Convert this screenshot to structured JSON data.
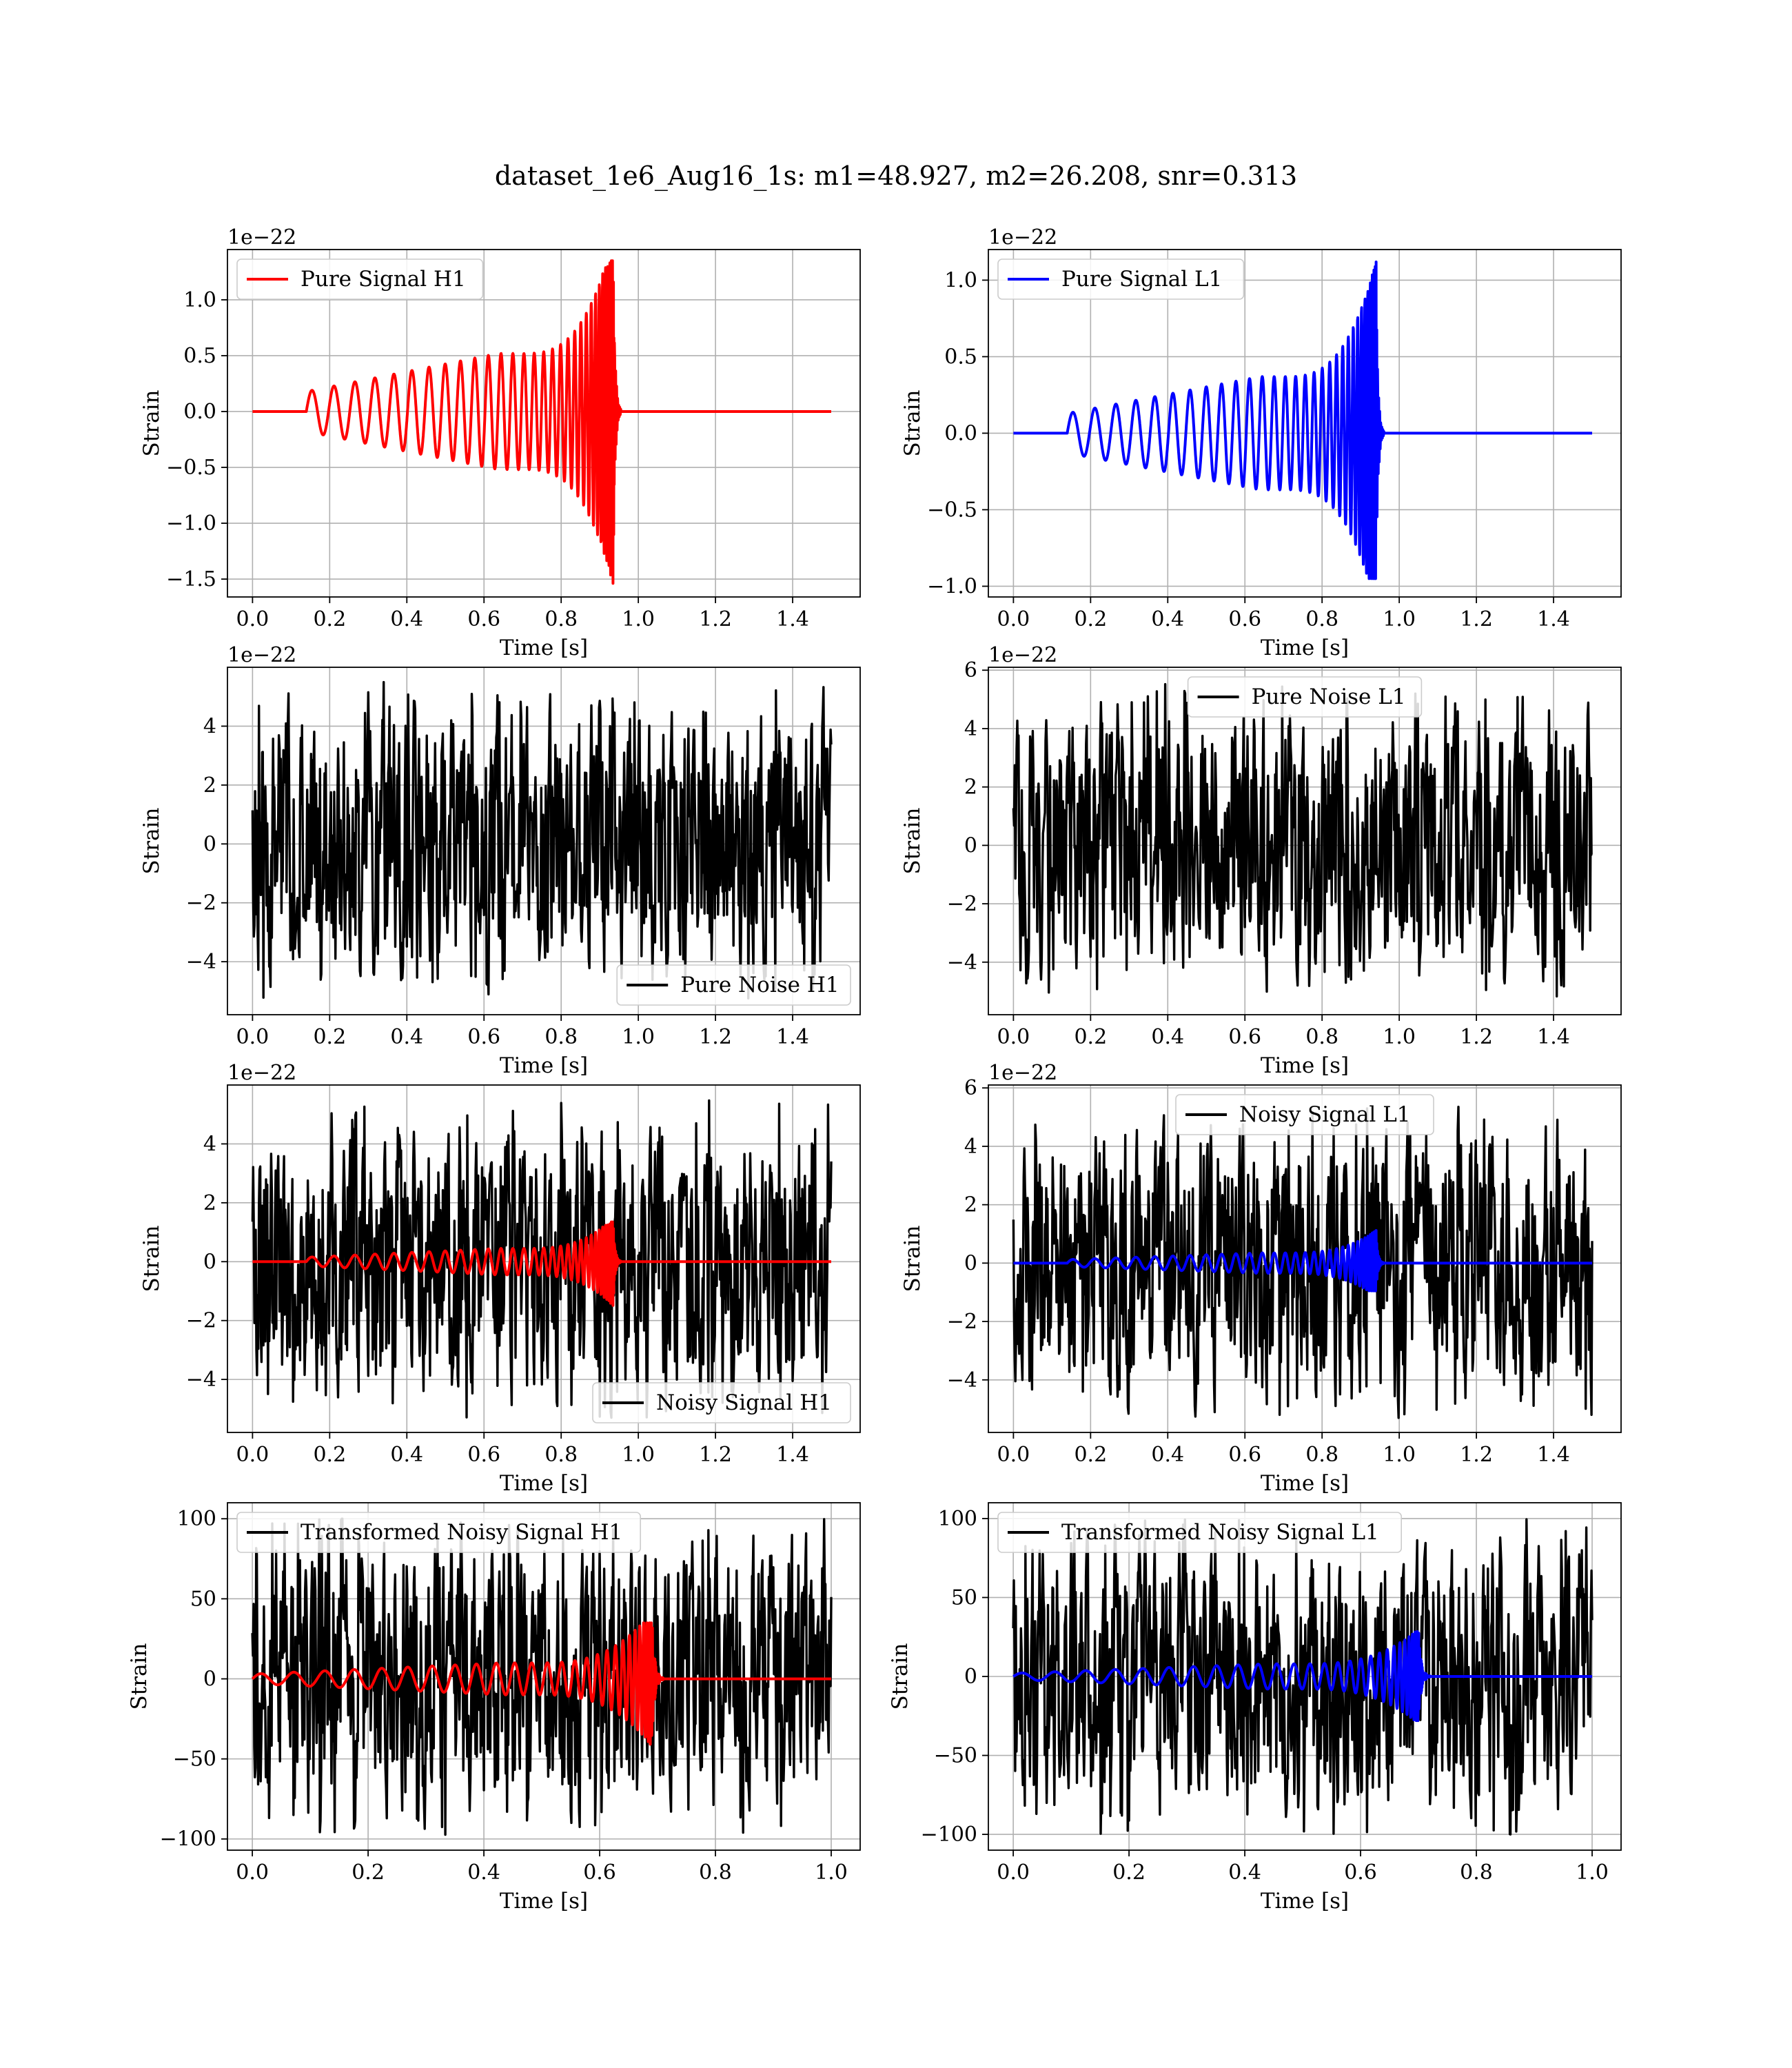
{
  "figure": {
    "title": "dataset_1e6_Aug16_1s: m1=48.927, m2=26.208, snr=0.313"
  },
  "colors": {
    "h1_signal": "#ff0000",
    "l1_signal": "#0000ff",
    "noise": "#000000",
    "grid": "#b0b0b0"
  },
  "chart_data": [
    {
      "type": "line",
      "panel": "pure-signal-h1",
      "xlabel": "Time [s]",
      "ylabel": "Strain",
      "offset_text": "1e−22",
      "xlim": [
        -0.065,
        1.575
      ],
      "ylim": [
        -1.66,
        1.45
      ],
      "xticks": [
        0.0,
        0.2,
        0.4,
        0.6,
        0.8,
        1.0,
        1.2,
        1.4
      ],
      "xtick_labels": [
        "0.0",
        "0.2",
        "0.4",
        "0.6",
        "0.8",
        "1.0",
        "1.2",
        "1.4"
      ],
      "yticks": [
        -1.5,
        -1.0,
        -0.5,
        0.0,
        0.5,
        1.0
      ],
      "ytick_labels": [
        "−1.5",
        "−1.0",
        "−0.5",
        "0.0",
        "0.5",
        "1.0"
      ],
      "grid": true,
      "legend": "upper left",
      "series": [
        {
          "name": "Pure Signal H1",
          "color": "#ff0000",
          "kind": "chirp",
          "x_start": 0.0,
          "x_end": 1.5,
          "onset": 0.14,
          "merger": 0.935,
          "amp_start": 0.18,
          "amp_plateau": 0.52,
          "peak_max": 1.35,
          "peak_min": -1.55
        }
      ]
    },
    {
      "type": "line",
      "panel": "pure-signal-l1",
      "xlabel": "Time [s]",
      "ylabel": "Strain",
      "offset_text": "1e−22",
      "xlim": [
        -0.065,
        1.575
      ],
      "ylim": [
        -1.07,
        1.2
      ],
      "xticks": [
        0.0,
        0.2,
        0.4,
        0.6,
        0.8,
        1.0,
        1.2,
        1.4
      ],
      "xtick_labels": [
        "0.0",
        "0.2",
        "0.4",
        "0.6",
        "0.8",
        "1.0",
        "1.2",
        "1.4"
      ],
      "yticks": [
        -1.0,
        -0.5,
        0.0,
        0.5,
        1.0
      ],
      "ytick_labels": [
        "−1.0",
        "−0.5",
        "0.0",
        "0.5",
        "1.0"
      ],
      "grid": true,
      "legend": "upper left",
      "series": [
        {
          "name": "Pure Signal L1",
          "color": "#0000ff",
          "kind": "chirp",
          "x_start": 0.0,
          "x_end": 1.5,
          "onset": 0.14,
          "merger": 0.94,
          "amp_start": 0.13,
          "amp_plateau": 0.37,
          "peak_max": 1.13,
          "peak_min": -0.95
        }
      ]
    },
    {
      "type": "line",
      "panel": "pure-noise-h1",
      "xlabel": "Time [s]",
      "ylabel": "Strain",
      "offset_text": "1e−22",
      "xlim": [
        -0.065,
        1.575
      ],
      "ylim": [
        -5.8,
        6.0
      ],
      "xticks": [
        0.0,
        0.2,
        0.4,
        0.6,
        0.8,
        1.0,
        1.2,
        1.4
      ],
      "xtick_labels": [
        "0.0",
        "0.2",
        "0.4",
        "0.6",
        "0.8",
        "1.0",
        "1.2",
        "1.4"
      ],
      "yticks": [
        -4,
        -2,
        0,
        2,
        4
      ],
      "ytick_labels": [
        "−4",
        "−2",
        "0",
        "2",
        "4"
      ],
      "grid": true,
      "legend": "lower right",
      "series": [
        {
          "name": "Pure Noise H1",
          "color": "#000000",
          "kind": "noise",
          "x_start": 0.0,
          "x_end": 1.5,
          "amp_max": 5.5,
          "amp_min": -5.3
        }
      ]
    },
    {
      "type": "line",
      "panel": "pure-noise-l1",
      "xlabel": "Time [s]",
      "ylabel": "Strain",
      "offset_text": "1e−22",
      "xlim": [
        -0.065,
        1.575
      ],
      "ylim": [
        -5.8,
        6.1
      ],
      "xticks": [
        0.0,
        0.2,
        0.4,
        0.6,
        0.8,
        1.0,
        1.2,
        1.4
      ],
      "xtick_labels": [
        "0.0",
        "0.2",
        "0.4",
        "0.6",
        "0.8",
        "1.0",
        "1.2",
        "1.4"
      ],
      "yticks": [
        -4,
        -2,
        0,
        2,
        4,
        6
      ],
      "ytick_labels": [
        "−4",
        "−2",
        "0",
        "2",
        "4",
        "6"
      ],
      "grid": true,
      "legend": "upper center",
      "series": [
        {
          "name": "Pure Noise L1",
          "color": "#000000",
          "kind": "noise",
          "x_start": 0.0,
          "x_end": 1.5,
          "amp_max": 5.6,
          "amp_min": -5.3
        }
      ]
    },
    {
      "type": "line",
      "panel": "noisy-signal-h1",
      "xlabel": "Time [s]",
      "ylabel": "Strain",
      "offset_text": "1e−22",
      "xlim": [
        -0.065,
        1.575
      ],
      "ylim": [
        -5.8,
        6.0
      ],
      "xticks": [
        0.0,
        0.2,
        0.4,
        0.6,
        0.8,
        1.0,
        1.2,
        1.4
      ],
      "xtick_labels": [
        "0.0",
        "0.2",
        "0.4",
        "0.6",
        "0.8",
        "1.0",
        "1.2",
        "1.4"
      ],
      "yticks": [
        -4,
        -2,
        0,
        2,
        4
      ],
      "ytick_labels": [
        "−4",
        "−2",
        "0",
        "2",
        "4"
      ],
      "grid": true,
      "legend": "lower right",
      "series": [
        {
          "name": "Noisy Signal H1",
          "color": "#000000",
          "kind": "noise",
          "x_start": 0.0,
          "x_end": 1.5,
          "amp_max": 5.5,
          "amp_min": -5.3
        },
        {
          "name": "",
          "color": "#ff0000",
          "kind": "chirp",
          "x_start": 0.0,
          "x_end": 1.5,
          "onset": 0.14,
          "merger": 0.935,
          "amp_start": 0.15,
          "amp_plateau": 0.45,
          "peak_max": 1.35,
          "peak_min": -1.5
        }
      ]
    },
    {
      "type": "line",
      "panel": "noisy-signal-l1",
      "xlabel": "Time [s]",
      "ylabel": "Strain",
      "offset_text": "1e−22",
      "xlim": [
        -0.065,
        1.575
      ],
      "ylim": [
        -5.8,
        6.1
      ],
      "xticks": [
        0.0,
        0.2,
        0.4,
        0.6,
        0.8,
        1.0,
        1.2,
        1.4
      ],
      "xtick_labels": [
        "0.0",
        "0.2",
        "0.4",
        "0.6",
        "0.8",
        "1.0",
        "1.2",
        "1.4"
      ],
      "yticks": [
        -4,
        -2,
        0,
        2,
        4,
        6
      ],
      "ytick_labels": [
        "−4",
        "−2",
        "0",
        "2",
        "4",
        "6"
      ],
      "grid": true,
      "legend": "upper center",
      "series": [
        {
          "name": "Noisy Signal L1",
          "color": "#000000",
          "kind": "noise",
          "x_start": 0.0,
          "x_end": 1.5,
          "amp_max": 5.6,
          "amp_min": -5.3
        },
        {
          "name": "",
          "color": "#0000ff",
          "kind": "chirp",
          "x_start": 0.0,
          "x_end": 1.5,
          "onset": 0.14,
          "merger": 0.94,
          "amp_start": 0.12,
          "amp_plateau": 0.35,
          "peak_max": 1.13,
          "peak_min": -0.95
        }
      ]
    },
    {
      "type": "line",
      "panel": "transformed-noisy-signal-h1",
      "xlabel": "Time [s]",
      "ylabel": "Strain",
      "offset_text": "",
      "xlim": [
        -0.043,
        1.05
      ],
      "ylim": [
        -107,
        110
      ],
      "xticks": [
        0.0,
        0.2,
        0.4,
        0.6,
        0.8,
        1.0
      ],
      "xtick_labels": [
        "0.0",
        "0.2",
        "0.4",
        "0.6",
        "0.8",
        "1.0"
      ],
      "yticks": [
        -100,
        -50,
        0,
        50,
        100
      ],
      "ytick_labels": [
        "−100",
        "−50",
        "0",
        "50",
        "100"
      ],
      "grid": true,
      "legend": "upper left",
      "series": [
        {
          "name": "Transformed Noisy Signal H1",
          "color": "#000000",
          "kind": "noise",
          "x_start": 0.0,
          "x_end": 1.0,
          "amp_max": 100,
          "amp_min": -100
        },
        {
          "name": "",
          "color": "#ff0000",
          "kind": "chirp",
          "x_start": 0.0,
          "x_end": 1.0,
          "onset": 0.0,
          "merger": 0.69,
          "amp_start": 3,
          "amp_plateau": 10,
          "peak_max": 35,
          "peak_min": -42
        }
      ]
    },
    {
      "type": "line",
      "panel": "transformed-noisy-signal-l1",
      "xlabel": "Time [s]",
      "ylabel": "Strain",
      "offset_text": "",
      "xlim": [
        -0.043,
        1.05
      ],
      "ylim": [
        -110,
        110
      ],
      "xticks": [
        0.0,
        0.2,
        0.4,
        0.6,
        0.8,
        1.0
      ],
      "xtick_labels": [
        "0.0",
        "0.2",
        "0.4",
        "0.6",
        "0.8",
        "1.0"
      ],
      "yticks": [
        -100,
        -50,
        0,
        50,
        100
      ],
      "ytick_labels": [
        "−100",
        "−50",
        "0",
        "50",
        "100"
      ],
      "grid": true,
      "legend": "upper left",
      "series": [
        {
          "name": "Transformed Noisy Signal L1",
          "color": "#000000",
          "kind": "noise",
          "x_start": 0.0,
          "x_end": 1.0,
          "amp_max": 100,
          "amp_min": -100
        },
        {
          "name": "",
          "color": "#0000ff",
          "kind": "chirp",
          "x_start": 0.0,
          "x_end": 1.0,
          "onset": 0.0,
          "merger": 0.7,
          "amp_start": 2,
          "amp_plateau": 8,
          "peak_max": 30,
          "peak_min": -28
        }
      ]
    }
  ]
}
